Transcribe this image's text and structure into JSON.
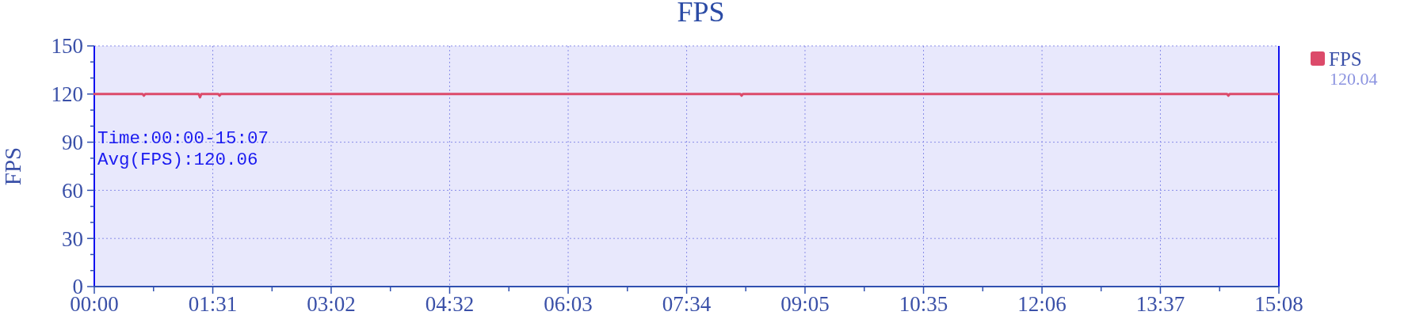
{
  "chart_data": {
    "type": "line",
    "title": "FPS",
    "ylabel": "FPS",
    "x": [
      0,
      37,
      38,
      39,
      80,
      81,
      82,
      95,
      96,
      97,
      495,
      496,
      497,
      868,
      869,
      870,
      907
    ],
    "series": [
      {
        "name": "FPS",
        "color": "#dc4a6a",
        "values": [
          120,
          120,
          119,
          120,
          120,
          118,
          120,
          120,
          119,
          120,
          120,
          119,
          120,
          120,
          119,
          120,
          120
        ]
      }
    ],
    "xlim": [
      0,
      907.7
    ],
    "xticks": [
      {
        "value": 0,
        "label": "00:00"
      },
      {
        "value": 45.4,
        "label": null
      },
      {
        "value": 90.8,
        "label": "01:31"
      },
      {
        "value": 136.2,
        "label": null
      },
      {
        "value": 181.5,
        "label": "03:02"
      },
      {
        "value": 226.9,
        "label": null
      },
      {
        "value": 272.3,
        "label": "04:32"
      },
      {
        "value": 317.7,
        "label": null
      },
      {
        "value": 363.1,
        "label": "06:03"
      },
      {
        "value": 408.5,
        "label": null
      },
      {
        "value": 453.9,
        "label": "07:34"
      },
      {
        "value": 499.2,
        "label": null
      },
      {
        "value": 544.6,
        "label": "09:05"
      },
      {
        "value": 590.0,
        "label": null
      },
      {
        "value": 635.4,
        "label": "10:35"
      },
      {
        "value": 680.8,
        "label": null
      },
      {
        "value": 726.2,
        "label": "12:06"
      },
      {
        "value": 771.5,
        "label": null
      },
      {
        "value": 816.9,
        "label": "13:37"
      },
      {
        "value": 862.3,
        "label": null
      },
      {
        "value": 907.7,
        "label": "15:08"
      }
    ],
    "ylim": [
      0,
      150
    ],
    "yticks": [
      0,
      {
        "value": 10,
        "label": null
      },
      {
        "value": 20,
        "label": null
      },
      30,
      {
        "value": 40,
        "label": null
      },
      {
        "value": 50,
        "label": null
      },
      60,
      {
        "value": 70,
        "label": null
      },
      {
        "value": 80,
        "label": null
      },
      90,
      {
        "value": 100,
        "label": null
      },
      {
        "value": 110,
        "label": null
      },
      120,
      {
        "value": 130,
        "label": null
      },
      {
        "value": 140,
        "label": null
      },
      150
    ],
    "grid": true,
    "legend": "right",
    "annotations": [
      "Time:00:00-15:07",
      "Avg(FPS):120.06",
      "120.04"
    ]
  }
}
